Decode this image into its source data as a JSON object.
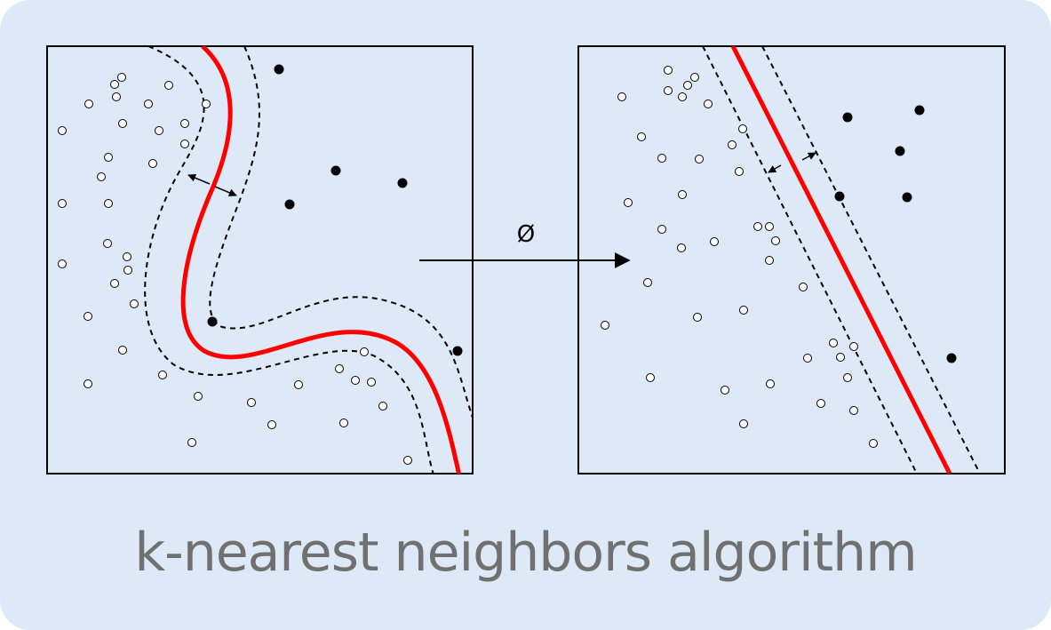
{
  "caption": "k-nearest neighbors algorithm",
  "mapping_symbol": "Ø",
  "colors": {
    "background": "#dde9f6",
    "boundary": "#ff0000",
    "margin": "#000000",
    "caption": "#707070"
  },
  "point_classes": [
    "white-point",
    "black-point"
  ]
}
